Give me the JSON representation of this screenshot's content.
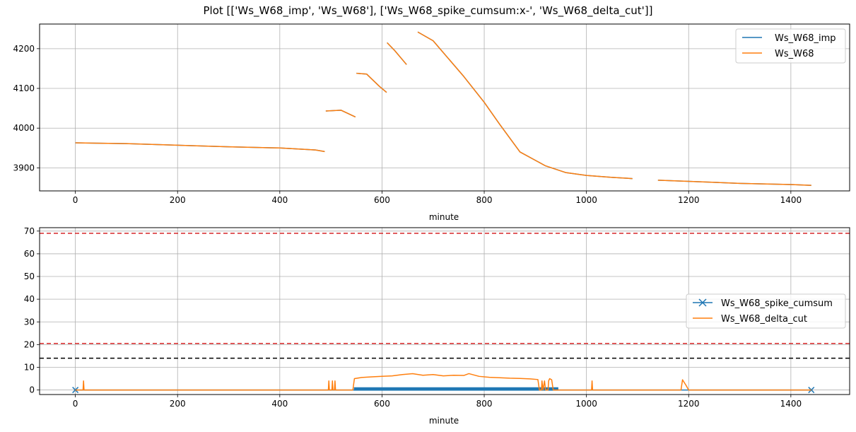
{
  "figure": {
    "title": "Plot [['Ws_W68_imp', 'Ws_W68'], ['Ws_W68_spike_cumsum:x-', 'Ws_W68_delta_cut']]"
  },
  "colors": {
    "blue": "#1f77b4",
    "orange": "#ff7f0e",
    "grid": "#b0b0b0",
    "red": "#d62728",
    "black": "#000000"
  },
  "chart_data": [
    {
      "type": "line",
      "xlabel": "minute",
      "ylabel": "",
      "xlim": [
        -70,
        1515
      ],
      "ylim": [
        3842,
        4262
      ],
      "xticks": [
        0,
        200,
        400,
        600,
        800,
        1000,
        1200,
        1400
      ],
      "yticks": [
        3900,
        4000,
        4100,
        4200
      ],
      "grid": true,
      "legend": {
        "position": "top-right",
        "entries": [
          "Ws_W68_imp",
          "Ws_W68"
        ]
      },
      "series": [
        {
          "name": "Ws_W68_imp",
          "color": "#1f77b4",
          "segments": [
            [
              [
                0,
                3963
              ],
              [
                100,
                3961
              ],
              [
                200,
                3957
              ],
              [
                300,
                3953
              ],
              [
                400,
                3950
              ],
              [
                470,
                3945
              ],
              [
                488,
                3941
              ]
            ],
            [
              [
                490,
                4043
              ],
              [
                520,
                4045
              ],
              [
                548,
                4028
              ]
            ],
            [
              [
                550,
                4138
              ],
              [
                570,
                4136
              ],
              [
                595,
                4105
              ],
              [
                609,
                4090
              ]
            ],
            [
              [
                610,
                4215
              ],
              [
                625,
                4195
              ],
              [
                648,
                4160
              ]
            ],
            [
              [
                670,
                4242
              ],
              [
                700,
                4220
              ],
              [
                760,
                4130
              ],
              [
                800,
                4065
              ],
              [
                830,
                4010
              ],
              [
                870,
                3940
              ],
              [
                920,
                3905
              ],
              [
                960,
                3888
              ],
              [
                1000,
                3881
              ],
              [
                1050,
                3876
              ],
              [
                1090,
                3873
              ]
            ],
            [
              [
                1140,
                3869
              ],
              [
                1200,
                3866
              ],
              [
                1300,
                3861
              ],
              [
                1400,
                3858
              ],
              [
                1440,
                3856
              ]
            ]
          ]
        },
        {
          "name": "Ws_W68",
          "color": "#ff7f0e",
          "segments": [
            [
              [
                0,
                3963
              ],
              [
                100,
                3961
              ],
              [
                200,
                3957
              ],
              [
                300,
                3953
              ],
              [
                400,
                3950
              ],
              [
                470,
                3945
              ],
              [
                488,
                3941
              ]
            ],
            [
              [
                490,
                4043
              ],
              [
                520,
                4045
              ],
              [
                548,
                4028
              ]
            ],
            [
              [
                550,
                4138
              ],
              [
                570,
                4136
              ],
              [
                595,
                4105
              ],
              [
                609,
                4090
              ]
            ],
            [
              [
                610,
                4215
              ],
              [
                625,
                4195
              ],
              [
                648,
                4160
              ]
            ],
            [
              [
                670,
                4242
              ],
              [
                700,
                4220
              ],
              [
                760,
                4130
              ],
              [
                800,
                4065
              ],
              [
                830,
                4010
              ],
              [
                870,
                3940
              ],
              [
                920,
                3905
              ],
              [
                960,
                3888
              ],
              [
                1000,
                3881
              ],
              [
                1050,
                3876
              ],
              [
                1090,
                3873
              ]
            ],
            [
              [
                1140,
                3869
              ],
              [
                1200,
                3866
              ],
              [
                1300,
                3861
              ],
              [
                1400,
                3858
              ],
              [
                1440,
                3856
              ]
            ]
          ]
        }
      ]
    },
    {
      "type": "line",
      "xlabel": "minute",
      "ylabel": "",
      "xlim": [
        -70,
        1515
      ],
      "ylim": [
        -2,
        71.5
      ],
      "xticks": [
        0,
        200,
        400,
        600,
        800,
        1000,
        1200,
        1400
      ],
      "yticks": [
        0,
        10,
        20,
        30,
        40,
        50,
        60,
        70
      ],
      "grid": true,
      "legend": {
        "position": "center-right",
        "entries": [
          "Ws_W68_spike_cumsum",
          "Ws_W68_delta_cut"
        ]
      },
      "hlines": [
        {
          "y": 69,
          "color": "#d62728",
          "style": "dashed"
        },
        {
          "y": 20.5,
          "color": "#d62728",
          "style": "dashed"
        },
        {
          "y": 14,
          "color": "#000000",
          "style": "dashed"
        }
      ],
      "series": [
        {
          "name": "Ws_W68_spike_cumsum",
          "color": "#1f77b4",
          "marker": "x",
          "segments": [
            [
              [
                0,
                0
              ],
              [
                1440,
                0
              ]
            ]
          ],
          "band": {
            "x": [
              545,
              945
            ],
            "y": [
              -0.3,
              1.2
            ]
          }
        },
        {
          "name": "Ws_W68_delta_cut",
          "color": "#ff7f0e",
          "segments": [
            [
              [
                0,
                0
              ],
              [
                15,
                0
              ],
              [
                16,
                4
              ],
              [
                17,
                0
              ],
              [
                495,
                0
              ],
              [
                496,
                4
              ],
              [
                497,
                0
              ],
              [
                502,
                0
              ],
              [
                503,
                4
              ],
              [
                504,
                0
              ],
              [
                507,
                0
              ],
              [
                508,
                4
              ],
              [
                509,
                0
              ],
              [
                543,
                0
              ],
              [
                546,
                5
              ],
              [
                560,
                5.5
              ],
              [
                580,
                5.8
              ],
              [
                600,
                6
              ],
              [
                620,
                6.2
              ],
              [
                640,
                6.8
              ],
              [
                660,
                7.2
              ],
              [
                680,
                6.5
              ],
              [
                700,
                6.8
              ],
              [
                720,
                6.2
              ],
              [
                740,
                6.5
              ],
              [
                760,
                6.4
              ],
              [
                770,
                7.2
              ],
              [
                790,
                6
              ],
              [
                810,
                5.6
              ],
              [
                830,
                5.4
              ],
              [
                850,
                5.2
              ],
              [
                870,
                5.1
              ],
              [
                890,
                4.9
              ],
              [
                905,
                4.6
              ],
              [
                908,
                0
              ],
              [
                912,
                0
              ],
              [
                913,
                4
              ],
              [
                915,
                0
              ],
              [
                918,
                4
              ],
              [
                920,
                0
              ],
              [
                925,
                0
              ],
              [
                926,
                4
              ],
              [
                928,
                5
              ],
              [
                932,
                4.5
              ],
              [
                935,
                0
              ],
              [
                1010,
                0
              ],
              [
                1011,
                4
              ],
              [
                1012,
                0
              ],
              [
                1185,
                0
              ],
              [
                1188,
                4.5
              ],
              [
                1195,
                2
              ],
              [
                1200,
                0
              ],
              [
                1440,
                0
              ]
            ]
          ]
        }
      ]
    }
  ]
}
